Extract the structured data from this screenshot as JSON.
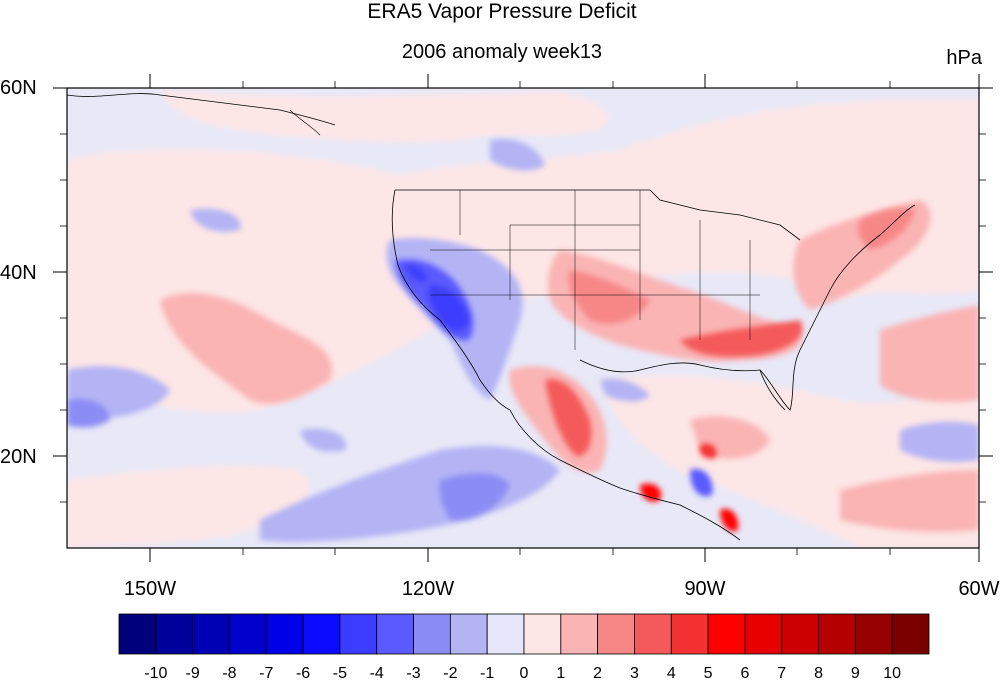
{
  "title": "ERA5 Vapor Pressure Deficit",
  "subtitle": "2006 anomaly week13",
  "units": "hPa",
  "lat_labels": [
    "60N",
    "40N",
    "20N"
  ],
  "lon_labels": [
    "150W",
    "120W",
    "90W",
    "60W"
  ],
  "colorbar": {
    "labels": [
      "-10",
      "-9",
      "-8",
      "-7",
      "-6",
      "-5",
      "-4",
      "-3",
      "-2",
      "-1",
      "0",
      "1",
      "2",
      "3",
      "4",
      "5",
      "6",
      "7",
      "8",
      "9",
      "10"
    ],
    "colors": [
      "#00007a",
      "#00009a",
      "#0000b4",
      "#0000cc",
      "#0000e6",
      "#0a0aff",
      "#3c3cff",
      "#5a5aff",
      "#8c8cf5",
      "#b4b4f5",
      "#e6e6fa",
      "#fde6e6",
      "#fab4b4",
      "#f78787",
      "#f55a5a",
      "#f53232",
      "#ff0000",
      "#e60000",
      "#cc0000",
      "#b40000",
      "#960000",
      "#7a0000"
    ]
  },
  "map": {
    "lon_range": [
      -160,
      -60
    ],
    "lat_range": [
      10,
      60
    ],
    "background": "#e8e8f7"
  }
}
